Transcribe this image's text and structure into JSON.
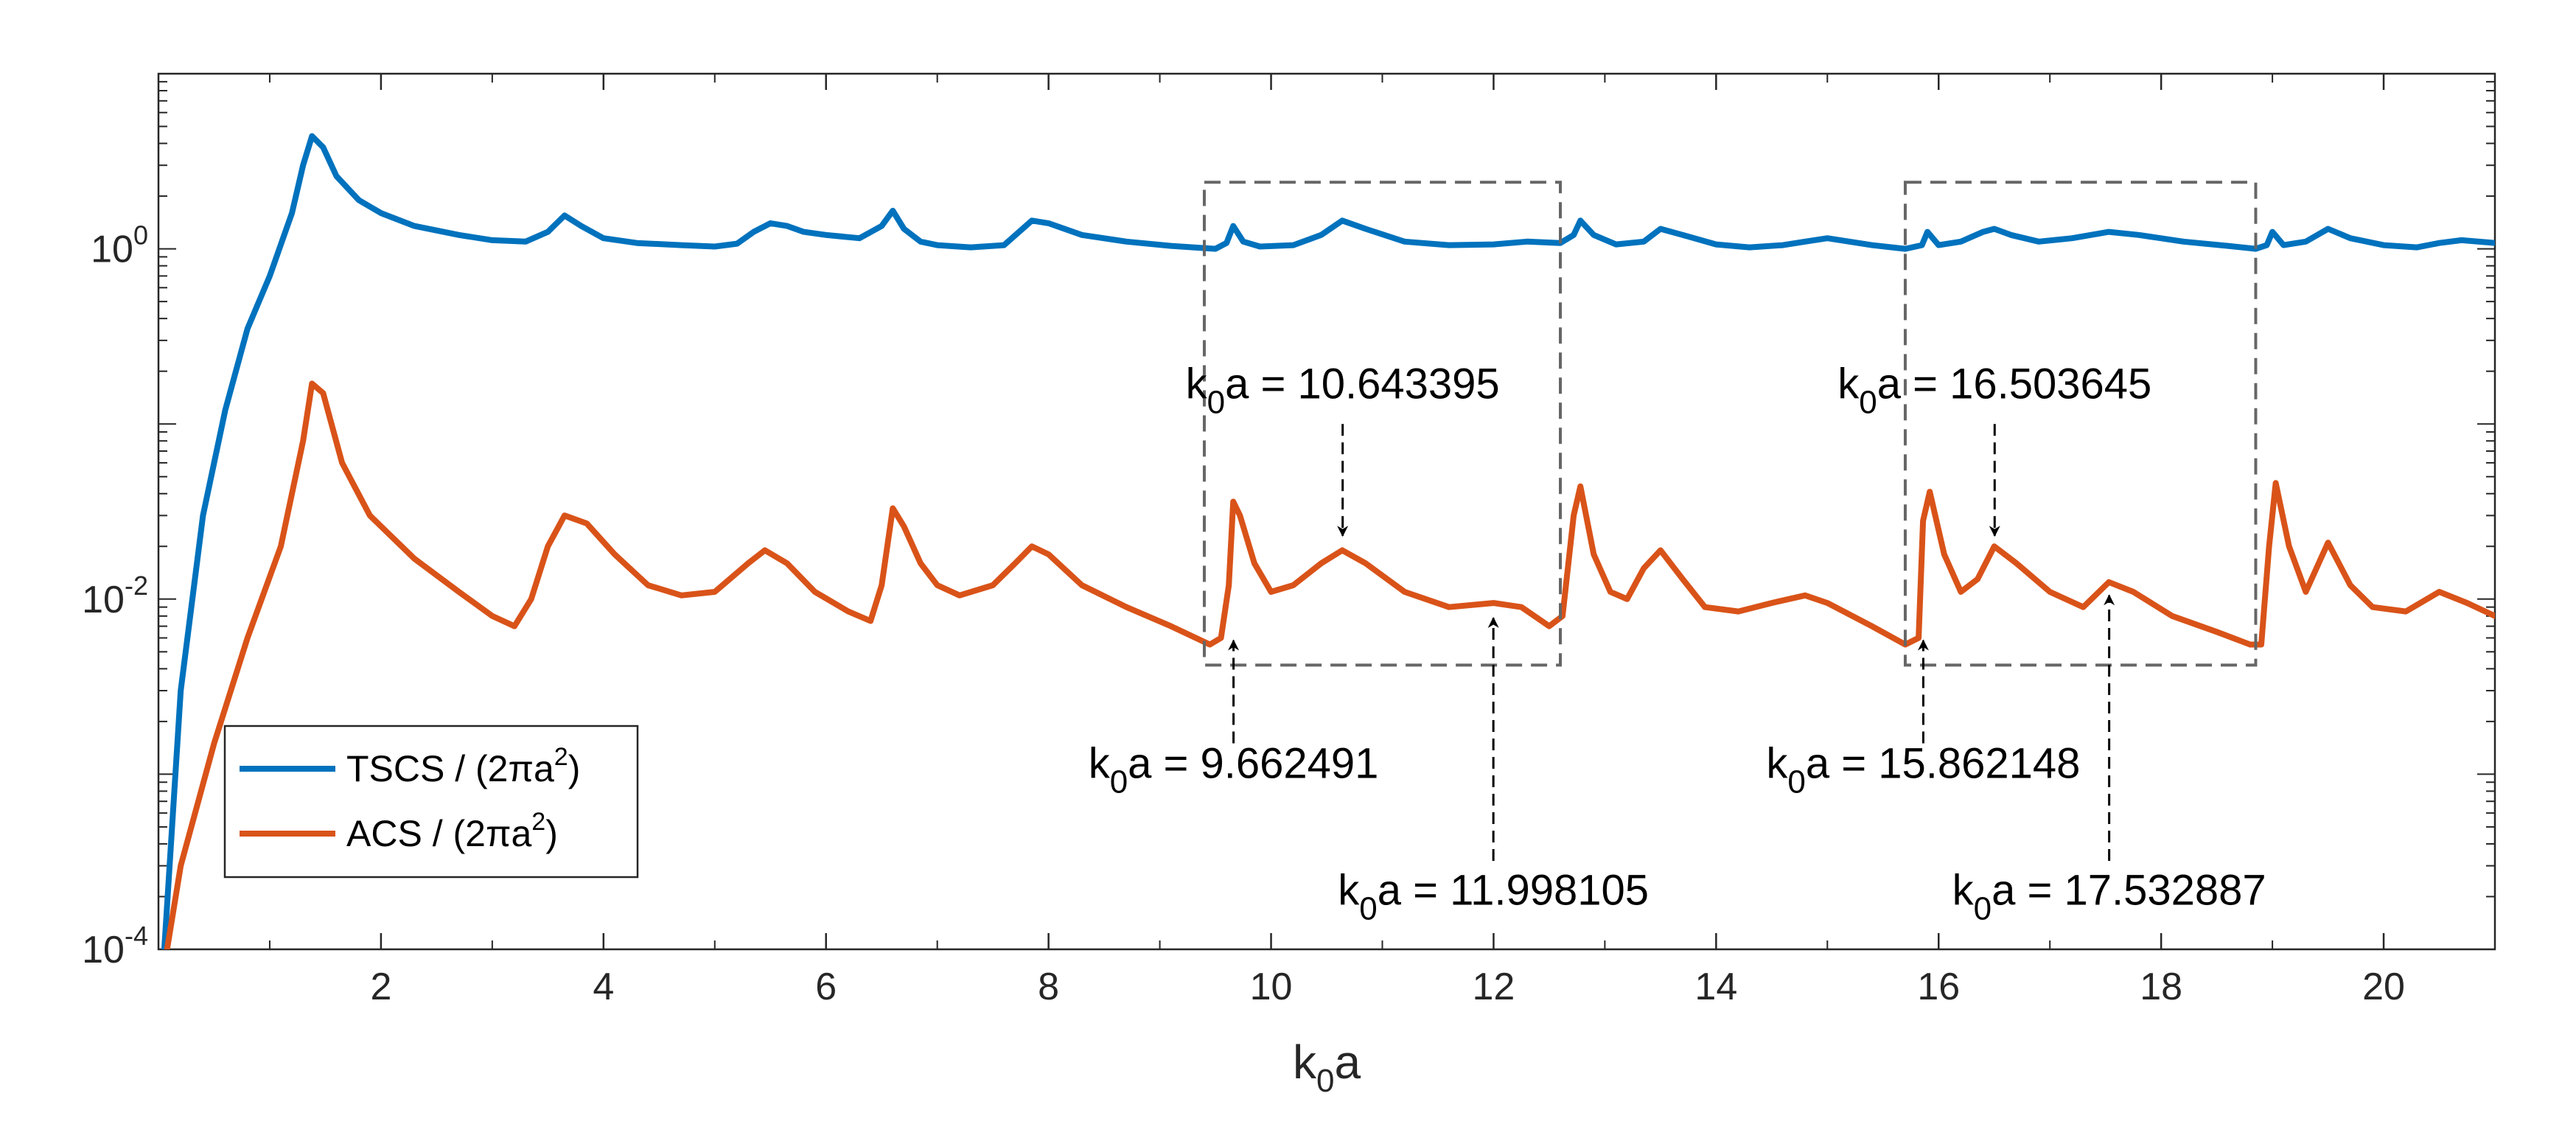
{
  "chart_data": {
    "type": "line",
    "xlabel": {
      "main": "k",
      "sub": "0",
      "tail": "a"
    },
    "ylabel": "",
    "yscale": "log",
    "xlim": [
      0,
      21
    ],
    "ylim": [
      0.0001,
      10
    ],
    "x_ticks": [
      2,
      4,
      6,
      8,
      10,
      12,
      14,
      16,
      18,
      20
    ],
    "x_tick_labels": [
      "2",
      "4",
      "6",
      "8",
      "10",
      "12",
      "14",
      "16",
      "18",
      "20"
    ],
    "y_ticks": [
      {
        "value": 0.0001,
        "base": "10",
        "exp": "-4"
      },
      {
        "value": 0.01,
        "base": "10",
        "exp": "-2"
      },
      {
        "value": 1,
        "base": "10",
        "exp": "0"
      }
    ],
    "colors": {
      "tscs": "#0072BD",
      "acs": "#D95319",
      "axis": "#262626",
      "box": "#666666",
      "arrow": "#000000"
    },
    "series": [
      {
        "name": "TSCS",
        "legend": {
          "prefix": "TSCS / (2",
          "symbol": "π",
          "mid": "a",
          "sup": "2",
          "suffix": ")"
        },
        "color": "#0072BD",
        "x": [
          0.0,
          0.2,
          0.4,
          0.6,
          0.8,
          1.0,
          1.2,
          1.3,
          1.38,
          1.48,
          1.6,
          1.8,
          2.0,
          2.3,
          2.7,
          3.0,
          3.3,
          3.5,
          3.65,
          3.8,
          4.0,
          4.3,
          4.7,
          5.0,
          5.2,
          5.35,
          5.5,
          5.65,
          5.8,
          6.0,
          6.3,
          6.5,
          6.6,
          6.7,
          6.85,
          7.0,
          7.3,
          7.6,
          7.85,
          8.0,
          8.3,
          8.7,
          9.1,
          9.5,
          9.6,
          9.66,
          9.75,
          9.9,
          10.2,
          10.45,
          10.64,
          10.85,
          11.2,
          11.6,
          12.0,
          12.3,
          12.6,
          12.72,
          12.78,
          12.9,
          13.1,
          13.35,
          13.5,
          13.7,
          14.0,
          14.3,
          14.6,
          14.8,
          15.0,
          15.4,
          15.7,
          15.85,
          15.9,
          16.0,
          16.2,
          16.4,
          16.5,
          16.65,
          16.9,
          17.2,
          17.53,
          17.8,
          18.2,
          18.6,
          18.85,
          18.95,
          19.0,
          19.1,
          19.3,
          19.5,
          19.7,
          20.0,
          20.3,
          20.5,
          20.7,
          21.0
        ],
        "y": [
          3e-05,
          0.003,
          0.03,
          0.12,
          0.35,
          0.7,
          1.6,
          3.0,
          4.4,
          3.8,
          2.6,
          1.9,
          1.6,
          1.35,
          1.2,
          1.12,
          1.1,
          1.25,
          1.55,
          1.35,
          1.15,
          1.08,
          1.05,
          1.03,
          1.07,
          1.25,
          1.4,
          1.35,
          1.25,
          1.2,
          1.15,
          1.35,
          1.65,
          1.3,
          1.1,
          1.05,
          1.02,
          1.05,
          1.45,
          1.4,
          1.2,
          1.1,
          1.04,
          1.0,
          1.08,
          1.35,
          1.1,
          1.03,
          1.05,
          1.2,
          1.45,
          1.3,
          1.1,
          1.05,
          1.06,
          1.1,
          1.08,
          1.2,
          1.45,
          1.2,
          1.06,
          1.1,
          1.3,
          1.2,
          1.06,
          1.02,
          1.05,
          1.1,
          1.15,
          1.05,
          1.0,
          1.05,
          1.25,
          1.05,
          1.1,
          1.25,
          1.3,
          1.2,
          1.1,
          1.15,
          1.25,
          1.2,
          1.1,
          1.04,
          1.0,
          1.05,
          1.25,
          1.05,
          1.1,
          1.3,
          1.15,
          1.05,
          1.02,
          1.08,
          1.12,
          1.08
        ]
      },
      {
        "name": "ACS",
        "legend": {
          "prefix": "ACS / (2",
          "symbol": "π",
          "mid": "a",
          "sup": "2",
          "suffix": ")"
        },
        "color": "#D95319",
        "x": [
          0.0,
          0.2,
          0.5,
          0.8,
          1.1,
          1.3,
          1.38,
          1.48,
          1.65,
          1.9,
          2.3,
          2.7,
          3.0,
          3.2,
          3.35,
          3.5,
          3.65,
          3.85,
          4.1,
          4.4,
          4.7,
          5.0,
          5.3,
          5.45,
          5.65,
          5.9,
          6.2,
          6.4,
          6.5,
          6.6,
          6.7,
          6.85,
          7.0,
          7.2,
          7.5,
          7.7,
          7.85,
          8.0,
          8.3,
          8.7,
          9.1,
          9.45,
          9.55,
          9.62,
          9.66,
          9.72,
          9.85,
          10.0,
          10.2,
          10.45,
          10.64,
          10.85,
          11.2,
          11.6,
          12.0,
          12.25,
          12.5,
          12.62,
          12.72,
          12.78,
          12.9,
          13.05,
          13.2,
          13.35,
          13.5,
          13.7,
          13.9,
          14.2,
          14.5,
          14.8,
          15.0,
          15.4,
          15.7,
          15.82,
          15.86,
          15.92,
          16.05,
          16.2,
          16.35,
          16.5,
          16.7,
          17.0,
          17.3,
          17.53,
          17.75,
          18.1,
          18.5,
          18.8,
          18.9,
          18.97,
          19.03,
          19.15,
          19.3,
          19.5,
          19.7,
          19.9,
          20.2,
          20.5,
          20.75,
          21.0
        ],
        "y": [
          5e-05,
          0.0003,
          0.0015,
          0.006,
          0.02,
          0.08,
          0.17,
          0.15,
          0.06,
          0.03,
          0.017,
          0.011,
          0.008,
          0.007,
          0.01,
          0.02,
          0.03,
          0.027,
          0.018,
          0.012,
          0.0105,
          0.011,
          0.016,
          0.019,
          0.016,
          0.011,
          0.0085,
          0.0075,
          0.012,
          0.033,
          0.026,
          0.016,
          0.012,
          0.0105,
          0.012,
          0.016,
          0.02,
          0.018,
          0.012,
          0.009,
          0.007,
          0.0055,
          0.006,
          0.012,
          0.036,
          0.03,
          0.016,
          0.011,
          0.012,
          0.016,
          0.019,
          0.016,
          0.011,
          0.009,
          0.0095,
          0.009,
          0.007,
          0.008,
          0.03,
          0.044,
          0.018,
          0.011,
          0.01,
          0.015,
          0.019,
          0.013,
          0.009,
          0.0085,
          0.0095,
          0.0105,
          0.0095,
          0.007,
          0.0055,
          0.006,
          0.028,
          0.041,
          0.018,
          0.011,
          0.013,
          0.02,
          0.016,
          0.011,
          0.009,
          0.0125,
          0.011,
          0.008,
          0.0065,
          0.0055,
          0.0055,
          0.02,
          0.046,
          0.02,
          0.011,
          0.021,
          0.012,
          0.009,
          0.0085,
          0.011,
          0.0095,
          0.008
        ]
      }
    ],
    "boxes": [
      {
        "x0": 9.4,
        "x1": 12.6,
        "y0": 0.0042,
        "y1": 2.4
      },
      {
        "x0": 15.7,
        "x1": 18.85,
        "y0": 0.0042,
        "y1": 2.4
      }
    ],
    "annotations": [
      {
        "value": "9.662491",
        "x": 9.662491,
        "tip_y": 0.0058,
        "dir": "up",
        "tail_y": 0.0015,
        "label_x": 9.662491,
        "label_y": 0.00095,
        "anchor": "middle"
      },
      {
        "value": "10.643395",
        "x": 10.643395,
        "tip_y": 0.023,
        "dir": "down",
        "tail_y": 0.1,
        "label_x": 10.643395,
        "label_y": 0.14,
        "anchor": "middle"
      },
      {
        "value": "11.998105",
        "x": 11.998105,
        "tip_y": 0.0078,
        "dir": "up",
        "tail_y": 0.00032,
        "label_x": 11.998105,
        "label_y": 0.00018,
        "anchor": "middle"
      },
      {
        "value": "15.862148",
        "x": 15.862148,
        "tip_y": 0.0058,
        "dir": "up",
        "tail_y": 0.0015,
        "label_x": 15.862148,
        "label_y": 0.00095,
        "anchor": "middle"
      },
      {
        "value": "16.503645",
        "x": 16.503645,
        "tip_y": 0.023,
        "dir": "down",
        "tail_y": 0.1,
        "label_x": 16.503645,
        "label_y": 0.14,
        "anchor": "middle"
      },
      {
        "value": "17.532887",
        "x": 17.532887,
        "tip_y": 0.0105,
        "dir": "up",
        "tail_y": 0.00032,
        "label_x": 17.532887,
        "label_y": 0.00018,
        "anchor": "middle"
      }
    ],
    "annotation_label": {
      "main": "k",
      "sub": "0",
      "tail": "a = "
    },
    "legend_position": "bottom-left"
  }
}
